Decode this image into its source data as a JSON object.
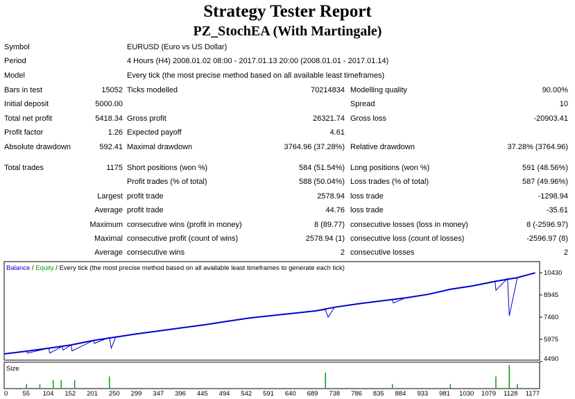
{
  "report": {
    "title": "Strategy Tester Report",
    "subtitle": "PZ_StochEA (With Martingale)"
  },
  "info": {
    "symbol_label": "Symbol",
    "symbol_value": "EURUSD (Euro vs US Dollar)",
    "period_label": "Period",
    "period_value": "4 Hours (H4) 2008.01.02 08:00 - 2017.01.13 20:00 (2008.01.01 - 2017.01.14)",
    "model_label": "Model",
    "model_value": "Every tick (the most precise method based on all available least timeframes)"
  },
  "stats": {
    "bars_label": "Bars in test",
    "bars_value": "15052",
    "ticks_label": "Ticks modelled",
    "ticks_value": "70214834",
    "quality_label": "Modelling quality",
    "quality_value": "90.00%",
    "deposit_label": "Initial deposit",
    "deposit_value": "5000.00",
    "spread_label": "Spread",
    "spread_value": "10",
    "net_label": "Total net profit",
    "net_value": "5418.34",
    "gross_profit_label": "Gross profit",
    "gross_profit_value": "26321.74",
    "gross_loss_label": "Gross loss",
    "gross_loss_value": "-20903.41",
    "pf_label": "Profit factor",
    "pf_value": "1.26",
    "payoff_label": "Expected payoff",
    "payoff_value": "4.61",
    "abs_dd_label": "Absolute drawdown",
    "abs_dd_value": "592.41",
    "max_dd_label": "Maximal drawdown",
    "max_dd_value": "3764.96 (37.28%)",
    "rel_dd_label": "Relative drawdown",
    "rel_dd_value": "37.28% (3764.96)"
  },
  "trades": {
    "total_label": "Total trades",
    "total_value": "1175",
    "short_label": "Short positions (won %)",
    "short_value": "584 (51.54%)",
    "long_label": "Long positions (won %)",
    "long_value": "591 (48.56%)",
    "profit_trades_label": "Profit trades (% of total)",
    "profit_trades_value": "588 (50.04%)",
    "loss_trades_label": "Loss trades (% of total)",
    "loss_trades_value": "587 (49.96%)",
    "largest_label": "Largest",
    "largest_profit_label": "profit trade",
    "largest_profit_value": "2578.94",
    "largest_loss_label": "loss trade",
    "largest_loss_value": "-1298.94",
    "average_label": "Average",
    "average_profit_label": "profit trade",
    "average_profit_value": "44.76",
    "average_loss_label": "loss trade",
    "average_loss_value": "-35.61",
    "maximum_label": "Maximum",
    "max_wins_label": "consecutive wins (profit in money)",
    "max_wins_value": "8 (89.77)",
    "max_losses_label": "consecutive losses (loss in money)",
    "max_losses_value": "8 (-2596.97)",
    "maximal_label": "Maximal",
    "maximal_profit_label": "consecutive profit (count of wins)",
    "maximal_profit_value": "2578.94 (1)",
    "maximal_loss_label": "consecutive loss (count of losses)",
    "maximal_loss_value": "-2596.97 (8)",
    "average2_label": "Average",
    "avg_wins_label": "consecutive wins",
    "avg_wins_value": "2",
    "avg_losses_label": "consecutive losses",
    "avg_losses_value": "2"
  },
  "chart_data": {
    "type": "line",
    "legend": {
      "balance": "Balance",
      "sep1": " / ",
      "equity": "Equity",
      "rest": " / Every tick (the most precise method based on all available least timeframes to generate each tick)"
    },
    "y_ticks": [
      "10430",
      "8945",
      "7460",
      "5975",
      "4490"
    ],
    "ylim": [
      4490,
      10430
    ],
    "x_ticks": [
      "0",
      "55",
      "104",
      "152",
      "201",
      "250",
      "299",
      "347",
      "396",
      "445",
      "494",
      "542",
      "591",
      "640",
      "689",
      "738",
      "786",
      "835",
      "884",
      "933",
      "981",
      "1030",
      "1079",
      "1128",
      "1177"
    ],
    "xlim": [
      0,
      1200
    ],
    "series": [
      {
        "values": [
          [
            0,
            5000
          ],
          [
            50,
            5180
          ],
          [
            100,
            5380
          ],
          [
            150,
            5600
          ],
          [
            200,
            5900
          ],
          [
            250,
            6130
          ],
          [
            300,
            6350
          ],
          [
            350,
            6550
          ],
          [
            400,
            6750
          ],
          [
            450,
            6950
          ],
          [
            500,
            7180
          ],
          [
            550,
            7400
          ],
          [
            600,
            7560
          ],
          [
            650,
            7720
          ],
          [
            700,
            7880
          ],
          [
            740,
            8120
          ],
          [
            800,
            8380
          ],
          [
            850,
            8560
          ],
          [
            900,
            8750
          ],
          [
            950,
            8980
          ],
          [
            1000,
            9320
          ],
          [
            1050,
            9550
          ],
          [
            1100,
            9850
          ],
          [
            1150,
            10100
          ],
          [
            1190,
            10420
          ]
        ]
      },
      {
        "values": [
          [
            0,
            5000
          ],
          [
            50,
            5180
          ],
          [
            52,
            5050
          ],
          [
            100,
            5380
          ],
          [
            102,
            5050
          ],
          [
            130,
            5500
          ],
          [
            132,
            5250
          ],
          [
            150,
            5600
          ],
          [
            152,
            5200
          ],
          [
            200,
            5900
          ],
          [
            202,
            5700
          ],
          [
            236,
            6100
          ],
          [
            240,
            5380
          ],
          [
            250,
            6130
          ],
          [
            300,
            6350
          ],
          [
            350,
            6550
          ],
          [
            400,
            6750
          ],
          [
            450,
            6950
          ],
          [
            500,
            7180
          ],
          [
            550,
            7400
          ],
          [
            600,
            7560
          ],
          [
            650,
            7720
          ],
          [
            700,
            7880
          ],
          [
            720,
            7950
          ],
          [
            726,
            7450
          ],
          [
            740,
            8120
          ],
          [
            800,
            8380
          ],
          [
            850,
            8560
          ],
          [
            870,
            8640
          ],
          [
            872,
            8400
          ],
          [
            900,
            8750
          ],
          [
            950,
            8980
          ],
          [
            1000,
            9320
          ],
          [
            1050,
            9550
          ],
          [
            1100,
            9850
          ],
          [
            1102,
            9250
          ],
          [
            1128,
            10050
          ],
          [
            1132,
            7550
          ],
          [
            1150,
            10100
          ],
          [
            1190,
            10420
          ]
        ]
      }
    ],
    "colors": {
      "balance": "#0000cc",
      "equity": "#00a000",
      "legend_text": "#000000"
    }
  },
  "size_chart": {
    "label": "Size",
    "values": [
      [
        50,
        1
      ],
      [
        80,
        1
      ],
      [
        110,
        2
      ],
      [
        128,
        2
      ],
      [
        158,
        2
      ],
      [
        236,
        3
      ],
      [
        720,
        4
      ],
      [
        870,
        1
      ],
      [
        1000,
        1
      ],
      [
        1102,
        3
      ],
      [
        1132,
        6
      ],
      [
        1150,
        1
      ]
    ],
    "max": 6
  }
}
